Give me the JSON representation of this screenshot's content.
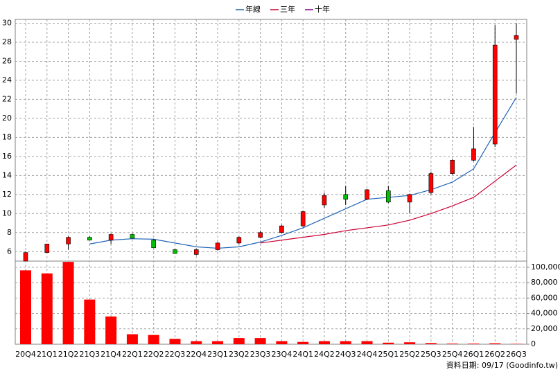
{
  "chart_data": {
    "type": "candlestick",
    "categories": [
      "20Q4",
      "21Q1",
      "21Q2",
      "21Q3",
      "21Q4",
      "22Q1",
      "22Q2",
      "22Q3",
      "22Q4",
      "23Q1",
      "23Q2",
      "23Q3",
      "23Q4",
      "24Q1",
      "24Q2",
      "24Q3",
      "24Q4",
      "25Q1",
      "25Q2",
      "25Q3",
      "25Q4",
      "26Q1",
      "26Q2",
      "26Q3"
    ],
    "open": [
      5.0,
      5.9,
      6.8,
      7.5,
      7.2,
      7.8,
      7.2,
      6.2,
      5.7,
      6.2,
      6.9,
      7.5,
      8.0,
      8.7,
      10.9,
      12.0,
      11.5,
      12.4,
      11.2,
      12.2,
      14.2,
      15.6,
      17.3,
      28.3
    ],
    "high": [
      6.0,
      6.8,
      7.6,
      7.6,
      7.9,
      7.9,
      7.3,
      6.3,
      6.3,
      7.0,
      7.6,
      8.2,
      8.8,
      10.3,
      12.2,
      12.9,
      12.6,
      12.9,
      12.1,
      14.4,
      15.7,
      19.1,
      29.8,
      30.0
    ],
    "low": [
      5.0,
      5.9,
      6.2,
      7.2,
      6.8,
      7.4,
      6.4,
      5.8,
      5.6,
      6.1,
      6.8,
      7.4,
      7.9,
      8.6,
      10.6,
      10.9,
      11.4,
      11.1,
      10.0,
      12.0,
      14.1,
      15.5,
      17.0,
      22.6
    ],
    "close": [
      5.9,
      6.8,
      7.5,
      7.2,
      7.8,
      7.4,
      6.4,
      5.8,
      6.2,
      6.9,
      7.5,
      8.0,
      8.7,
      10.2,
      11.9,
      11.5,
      12.5,
      11.2,
      12.0,
      14.2,
      15.6,
      16.8,
      27.7,
      28.7
    ],
    "up_color": "#ff0000",
    "down_color": "#00c000",
    "series": [
      {
        "name": "年線",
        "color": "#1f63b6",
        "values": [
          null,
          null,
          null,
          6.8,
          7.2,
          7.35,
          7.3,
          6.9,
          6.5,
          6.35,
          6.5,
          7.0,
          7.7,
          8.5,
          9.5,
          10.5,
          11.5,
          11.7,
          11.9,
          12.5,
          13.3,
          14.7,
          18.5,
          22.2
        ]
      },
      {
        "name": "三年",
        "color": "#cc0033",
        "values": [
          null,
          null,
          null,
          null,
          null,
          null,
          null,
          null,
          null,
          null,
          null,
          6.9,
          7.2,
          7.5,
          7.8,
          8.2,
          8.5,
          8.8,
          9.3,
          10.0,
          10.8,
          11.7,
          13.4,
          15.1
        ]
      },
      {
        "name": "十年",
        "color": "#800080",
        "values": [
          null,
          null,
          null,
          null,
          null,
          null,
          null,
          null,
          null,
          null,
          null,
          null,
          null,
          null,
          null,
          null,
          null,
          null,
          null,
          null,
          null,
          null,
          null,
          null
        ]
      }
    ],
    "ylim": [
      5,
      30.4
    ],
    "yticks": [
      6,
      8,
      10,
      12,
      14,
      16,
      18,
      20,
      22,
      24,
      26,
      28,
      30
    ],
    "grid": true,
    "volume": {
      "values": [
        96000,
        92000,
        107000,
        58000,
        36000,
        13000,
        12000,
        7000,
        4000,
        4000,
        8000,
        8000,
        4000,
        3000,
        4000,
        4000,
        4000,
        2000,
        2500,
        1500,
        800,
        800,
        1200,
        500
      ],
      "color": "#ff0000",
      "ylim": [
        0,
        108000
      ],
      "yticks": [
        0,
        {
          "value": 20000,
          "label": "20,000"
        },
        {
          "value": 40000,
          "label": "40,000"
        },
        {
          "value": 60000,
          "label": "60,000"
        },
        {
          "value": 80000,
          "label": "80,000"
        },
        {
          "value": 100000,
          "label": "100,000"
        }
      ]
    },
    "footnote": "資料日期: 09/17 (Goodinfo.tw)"
  }
}
